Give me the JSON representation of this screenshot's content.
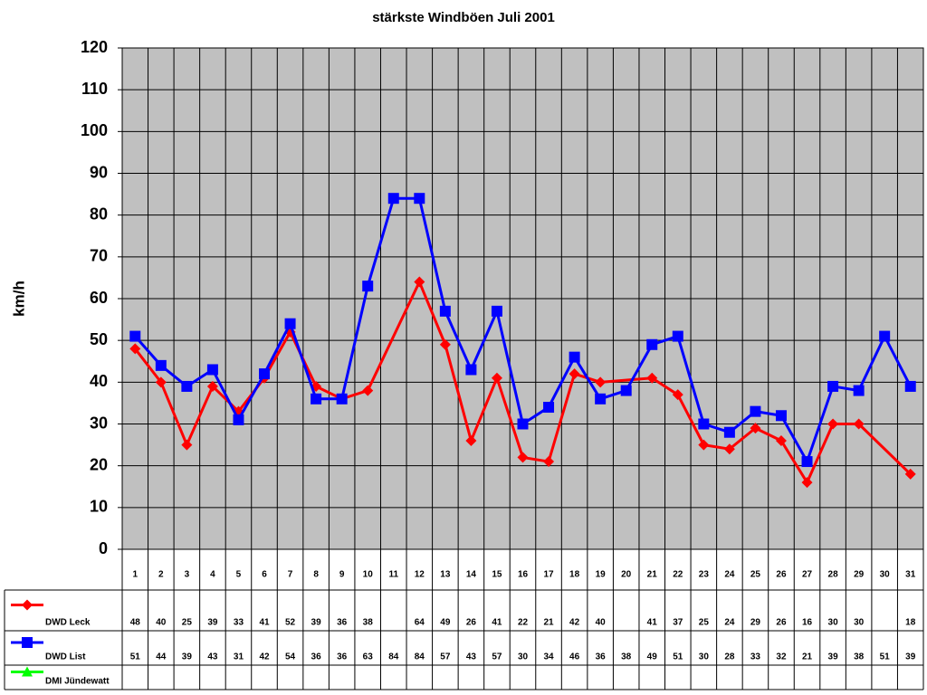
{
  "chart_data": {
    "type": "line",
    "title": "stärkste Windböen Juli 2001",
    "y_label": "km/h",
    "categories": [
      "1",
      "2",
      "3",
      "4",
      "5",
      "6",
      "7",
      "8",
      "9",
      "10",
      "11",
      "12",
      "13",
      "14",
      "15",
      "16",
      "17",
      "18",
      "19",
      "20",
      "21",
      "22",
      "23",
      "24",
      "25",
      "26",
      "27",
      "28",
      "29",
      "30",
      "31"
    ],
    "ylim": [
      0,
      120
    ],
    "yticks": [
      0,
      10,
      20,
      30,
      40,
      50,
      60,
      70,
      80,
      90,
      100,
      110,
      120
    ],
    "grid": true,
    "connect_gaps": true,
    "data_table": true,
    "series": [
      {
        "name": "DWD Leck",
        "color": "#ff0000",
        "marker": "diamond",
        "values": [
          48,
          40,
          25,
          39,
          33,
          41,
          52,
          39,
          36,
          38,
          null,
          64,
          49,
          26,
          41,
          22,
          21,
          42,
          40,
          null,
          41,
          37,
          25,
          24,
          29,
          26,
          16,
          30,
          30,
          null,
          18
        ]
      },
      {
        "name": "DWD List",
        "color": "#0000ff",
        "marker": "square",
        "values": [
          51,
          44,
          39,
          43,
          31,
          42,
          54,
          36,
          36,
          63,
          84,
          84,
          57,
          43,
          57,
          30,
          34,
          46,
          36,
          38,
          49,
          51,
          30,
          28,
          33,
          32,
          21,
          39,
          38,
          51,
          39
        ]
      },
      {
        "name": "DMI Jündewatt",
        "color": "#00ff00",
        "marker": "triangle",
        "values": [
          null,
          null,
          null,
          null,
          null,
          null,
          null,
          null,
          null,
          null,
          null,
          null,
          null,
          null,
          null,
          null,
          null,
          null,
          null,
          null,
          null,
          null,
          null,
          null,
          null,
          null,
          null,
          null,
          null,
          null,
          null
        ]
      }
    ]
  }
}
